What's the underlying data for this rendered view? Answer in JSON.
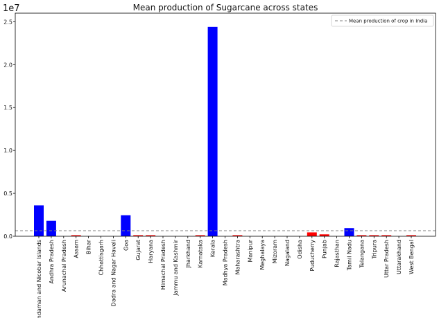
{
  "chart_data": {
    "type": "bar",
    "title": "Mean production of Sugarcane across states",
    "xlabel": "",
    "ylabel": "",
    "y_offset_label": "1e7",
    "ylim": [
      0,
      2.6
    ],
    "yticks": [
      "0.0",
      "0.5",
      "1.0",
      "1.5",
      "2.0",
      "2.5"
    ],
    "ytick_values": [
      0,
      0.5,
      1.0,
      1.5,
      2.0,
      2.5
    ],
    "categories": [
      "Andaman and Nicobar Islands",
      "Andhra Pradesh",
      "Arunachal Pradesh",
      "Assam",
      "Bihar",
      "Chhattisgarh",
      "Dadra and Nagar Haveli",
      "Goa",
      "Gujarat",
      "Haryana",
      "Himachal Pradesh",
      "Jammu and Kashmir",
      "Jharkhand",
      "Karnataka",
      "Kerala",
      "Madhya Pradesh",
      "Maharashtra",
      "Manipur",
      "Meghalaya",
      "Mizoram",
      "Nagaland",
      "Odisha",
      "Puducherry",
      "Punjab",
      "Rajasthan",
      "Tamil Nadu",
      "Telangana",
      "Tripura",
      "Uttar Pradesh",
      "Uttarakhand",
      "West Bengal"
    ],
    "values": [
      0.36,
      0.18,
      0.0,
      0.012,
      0.0,
      0.0,
      0.0,
      0.245,
      0.005,
      0.012,
      0.0,
      0.0,
      0.0,
      0.005,
      2.44,
      0.0,
      0.01,
      0.0,
      0.0,
      0.0,
      0.0,
      0.0,
      0.045,
      0.022,
      0.0,
      0.095,
      0.005,
      0.004,
      0.012,
      0.0,
      0.012
    ],
    "bar_colors": [
      "#0000ff",
      "#0000ff",
      "#ff0000",
      "#ff0000",
      "#ff0000",
      "#ff0000",
      "#ff0000",
      "#0000ff",
      "#ff0000",
      "#ff0000",
      "#ff0000",
      "#ff0000",
      "#ff0000",
      "#ff0000",
      "#0000ff",
      "#ff0000",
      "#ff0000",
      "#ff0000",
      "#ff0000",
      "#ff0000",
      "#ff0000",
      "#ff0000",
      "#ff0000",
      "#ff0000",
      "#ff0000",
      "#0000ff",
      "#ff0000",
      "#ff0000",
      "#ff0000",
      "#ff0000",
      "#ff0000"
    ],
    "reference_line": {
      "value": 0.065,
      "label": "Mean production of crop in India",
      "color": "#808080",
      "style": "dashed"
    },
    "legend_position": "top-right",
    "grid": false
  }
}
